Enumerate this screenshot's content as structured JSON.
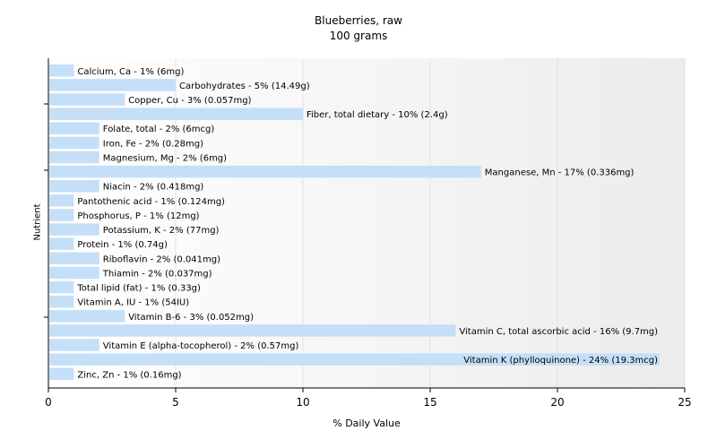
{
  "chart_data": {
    "type": "bar",
    "orientation": "horizontal",
    "title": "Blueberries, raw",
    "subtitle": "100 grams",
    "xlabel": "% Daily Value",
    "ylabel": "Nutrient",
    "xlim": [
      0,
      25
    ],
    "xticks": [
      0,
      5,
      10,
      15,
      20,
      25
    ],
    "grid": "vertical",
    "bar_color": "#c6dff9",
    "categories": [
      "Calcium, Ca",
      "Carbohydrates",
      "Copper, Cu",
      "Fiber, total dietary",
      "Folate, total",
      "Iron, Fe",
      "Magnesium, Mg",
      "Manganese, Mn",
      "Niacin",
      "Pantothenic acid",
      "Phosphorus, P",
      "Potassium, K",
      "Protein",
      "Riboflavin",
      "Thiamin",
      "Total lipid (fat)",
      "Vitamin A, IU",
      "Vitamin B-6",
      "Vitamin C, total ascorbic acid",
      "Vitamin E (alpha-tocopherol)",
      "Vitamin K (phylloquinone)",
      "Zinc, Zn"
    ],
    "values": [
      1,
      5,
      3,
      10,
      2,
      2,
      2,
      17,
      2,
      1,
      1,
      2,
      1,
      2,
      2,
      1,
      1,
      3,
      16,
      2,
      24,
      1
    ],
    "labels": [
      "Calcium, Ca - 1% (6mg)",
      "Carbohydrates - 5% (14.49g)",
      "Copper, Cu - 3% (0.057mg)",
      "Fiber, total dietary - 10% (2.4g)",
      "Folate, total - 2% (6mcg)",
      "Iron, Fe - 2% (0.28mg)",
      "Magnesium, Mg - 2% (6mg)",
      "Manganese, Mn - 17% (0.336mg)",
      "Niacin - 2% (0.418mg)",
      "Pantothenic acid - 1% (0.124mg)",
      "Phosphorus, P - 1% (12mg)",
      "Potassium, K - 2% (77mg)",
      "Protein - 1% (0.74g)",
      "Riboflavin - 2% (0.041mg)",
      "Thiamin - 2% (0.037mg)",
      "Total lipid (fat) - 1% (0.33g)",
      "Vitamin A, IU - 1% (54IU)",
      "Vitamin B-6 - 3% (0.052mg)",
      "Vitamin C, total ascorbic acid - 16% (9.7mg)",
      "Vitamin E (alpha-tocopherol) - 2% (0.57mg)",
      "Vitamin K (phylloquinone) - 24% (19.3mcg)",
      "Zinc, Zn - 1% (0.16mg)"
    ]
  }
}
